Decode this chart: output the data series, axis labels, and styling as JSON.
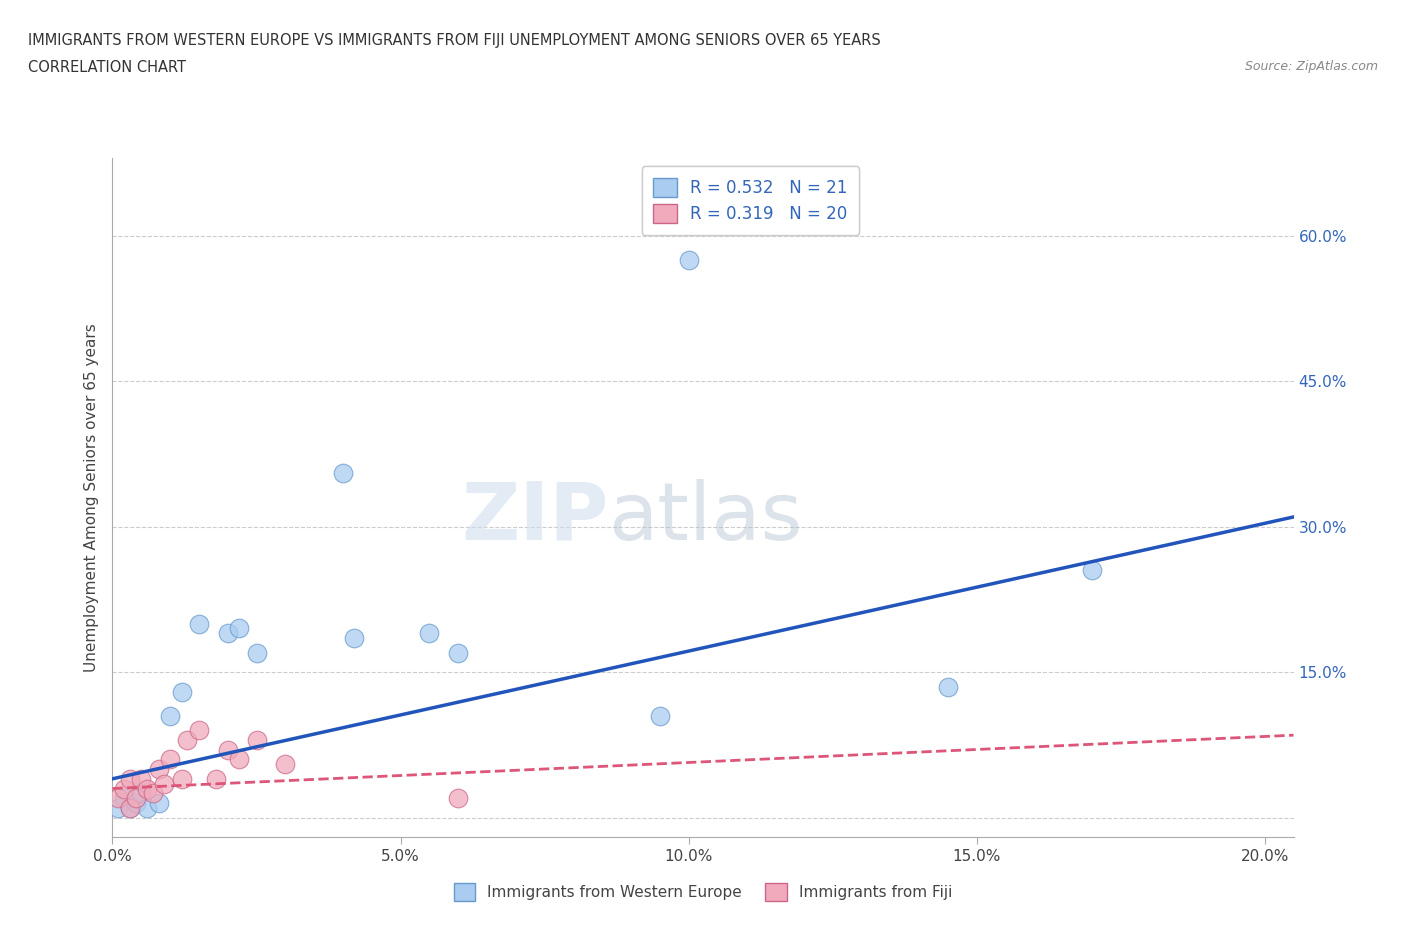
{
  "title_line1": "IMMIGRANTS FROM WESTERN EUROPE VS IMMIGRANTS FROM FIJI UNEMPLOYMENT AMONG SENIORS OVER 65 YEARS",
  "title_line2": "CORRELATION CHART",
  "source_text": "Source: ZipAtlas.com",
  "watermark_zip": "ZIP",
  "watermark_atlas": "atlas",
  "xlabel": "",
  "ylabel": "Unemployment Among Seniors over 65 years",
  "legend_bottom": [
    "Immigrants from Western Europe",
    "Immigrants from Fiji"
  ],
  "blue_R": "0.532",
  "blue_N": "21",
  "pink_R": "0.319",
  "pink_N": "20",
  "blue_color": "#aaccf0",
  "pink_color": "#f0aabb",
  "blue_edge_color": "#6699cc",
  "pink_edge_color": "#cc6688",
  "blue_line_color": "#2255bb",
  "pink_line_color": "#dd5577",
  "grid_color": "#cccccc",
  "background_color": "#ffffff",
  "xlim": [
    0.0,
    0.205
  ],
  "ylim": [
    -0.02,
    0.68
  ],
  "xticks": [
    0.0,
    0.05,
    0.1,
    0.15,
    0.2
  ],
  "yticks": [
    0.0,
    0.15,
    0.3,
    0.45,
    0.6
  ],
  "xtick_labels": [
    "0.0%",
    "5.0%",
    "10.0%",
    "15.0%",
    "20.0%"
  ],
  "ytick_labels": [
    "",
    "15.0%",
    "30.0%",
    "45.0%",
    "60.0%"
  ],
  "blue_x": [
    0.001,
    0.002,
    0.003,
    0.004,
    0.005,
    0.006,
    0.008,
    0.01,
    0.012,
    0.015,
    0.02,
    0.022,
    0.025,
    0.04,
    0.042,
    0.055,
    0.06,
    0.095,
    0.1,
    0.145,
    0.17
  ],
  "blue_y": [
    0.01,
    0.02,
    0.01,
    0.015,
    0.025,
    0.01,
    0.015,
    0.105,
    0.13,
    0.2,
    0.19,
    0.195,
    0.17,
    0.355,
    0.185,
    0.19,
    0.17,
    0.105,
    0.575,
    0.135,
    0.255
  ],
  "pink_x": [
    0.001,
    0.002,
    0.003,
    0.003,
    0.004,
    0.005,
    0.006,
    0.007,
    0.008,
    0.009,
    0.01,
    0.012,
    0.013,
    0.015,
    0.018,
    0.02,
    0.022,
    0.025,
    0.03,
    0.06
  ],
  "pink_y": [
    0.02,
    0.03,
    0.01,
    0.04,
    0.02,
    0.04,
    0.03,
    0.025,
    0.05,
    0.035,
    0.06,
    0.04,
    0.08,
    0.09,
    0.04,
    0.07,
    0.06,
    0.08,
    0.055,
    0.02
  ],
  "blue_line_x0": 0.0,
  "blue_line_y0": 0.04,
  "blue_line_x1": 0.205,
  "blue_line_y1": 0.31,
  "pink_line_x0": 0.0,
  "pink_line_y0": 0.03,
  "pink_line_x1": 0.205,
  "pink_line_y1": 0.085
}
